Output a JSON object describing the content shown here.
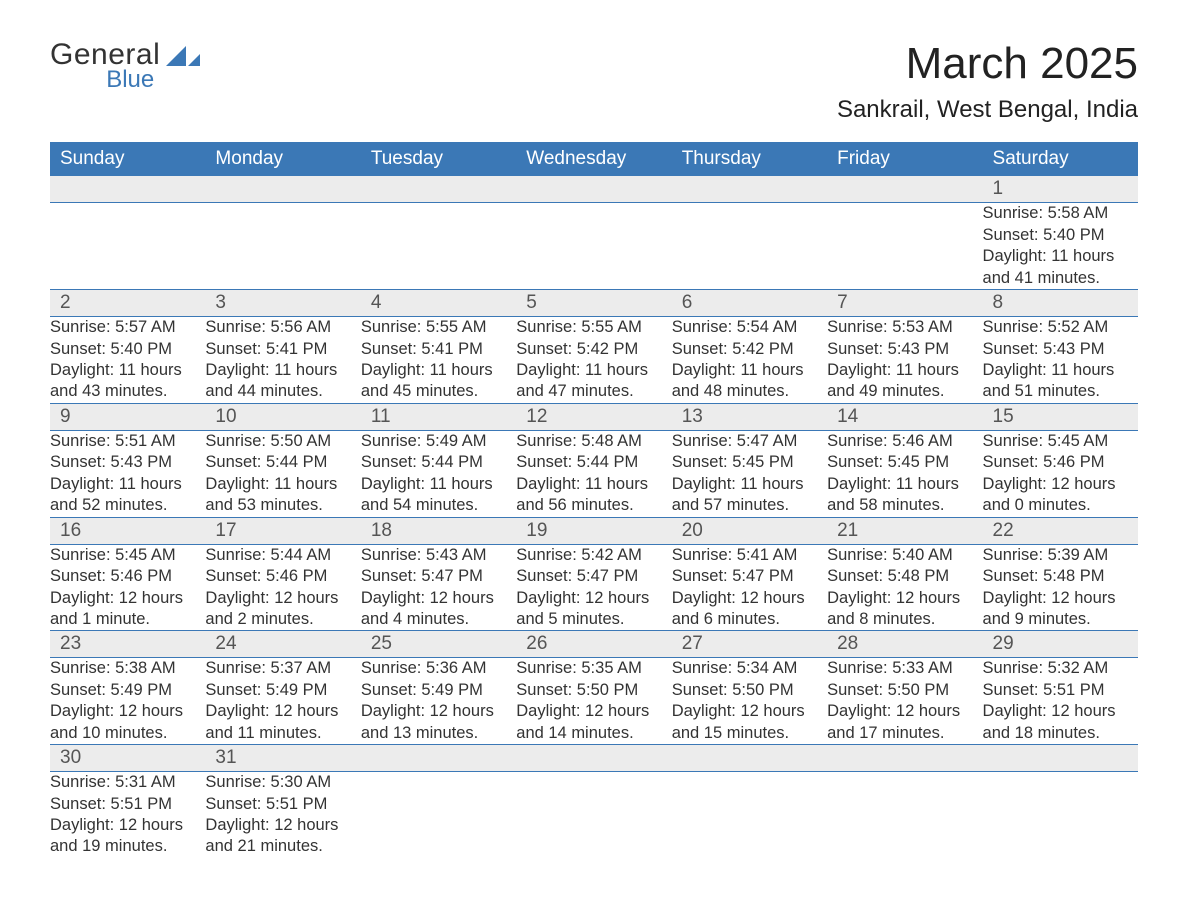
{
  "brand": {
    "line1": "General",
    "line2": "Blue",
    "icon_color": "#3b78b6"
  },
  "title": "March 2025",
  "location": "Sankrail, West Bengal, India",
  "columns": [
    "Sunday",
    "Monday",
    "Tuesday",
    "Wednesday",
    "Thursday",
    "Friday",
    "Saturday"
  ],
  "colors": {
    "header_bg": "#3b78b6",
    "header_text": "#ffffff",
    "daynum_bg": "#ececec",
    "row_divider": "#3b78b6",
    "body_text": "#333333",
    "page_bg": "#ffffff"
  },
  "typography": {
    "title_fontsize": 44,
    "location_fontsize": 24,
    "header_fontsize": 19,
    "daynum_fontsize": 19,
    "body_fontsize": 16.5,
    "font_family": "Arial"
  },
  "first_weekday_index": 6,
  "weeks": [
    [
      null,
      null,
      null,
      null,
      null,
      null,
      {
        "n": "1",
        "sunrise": "Sunrise: 5:58 AM",
        "sunset": "Sunset: 5:40 PM",
        "daylight": "Daylight: 11 hours and 41 minutes."
      }
    ],
    [
      {
        "n": "2",
        "sunrise": "Sunrise: 5:57 AM",
        "sunset": "Sunset: 5:40 PM",
        "daylight": "Daylight: 11 hours and 43 minutes."
      },
      {
        "n": "3",
        "sunrise": "Sunrise: 5:56 AM",
        "sunset": "Sunset: 5:41 PM",
        "daylight": "Daylight: 11 hours and 44 minutes."
      },
      {
        "n": "4",
        "sunrise": "Sunrise: 5:55 AM",
        "sunset": "Sunset: 5:41 PM",
        "daylight": "Daylight: 11 hours and 45 minutes."
      },
      {
        "n": "5",
        "sunrise": "Sunrise: 5:55 AM",
        "sunset": "Sunset: 5:42 PM",
        "daylight": "Daylight: 11 hours and 47 minutes."
      },
      {
        "n": "6",
        "sunrise": "Sunrise: 5:54 AM",
        "sunset": "Sunset: 5:42 PM",
        "daylight": "Daylight: 11 hours and 48 minutes."
      },
      {
        "n": "7",
        "sunrise": "Sunrise: 5:53 AM",
        "sunset": "Sunset: 5:43 PM",
        "daylight": "Daylight: 11 hours and 49 minutes."
      },
      {
        "n": "8",
        "sunrise": "Sunrise: 5:52 AM",
        "sunset": "Sunset: 5:43 PM",
        "daylight": "Daylight: 11 hours and 51 minutes."
      }
    ],
    [
      {
        "n": "9",
        "sunrise": "Sunrise: 5:51 AM",
        "sunset": "Sunset: 5:43 PM",
        "daylight": "Daylight: 11 hours and 52 minutes."
      },
      {
        "n": "10",
        "sunrise": "Sunrise: 5:50 AM",
        "sunset": "Sunset: 5:44 PM",
        "daylight": "Daylight: 11 hours and 53 minutes."
      },
      {
        "n": "11",
        "sunrise": "Sunrise: 5:49 AM",
        "sunset": "Sunset: 5:44 PM",
        "daylight": "Daylight: 11 hours and 54 minutes."
      },
      {
        "n": "12",
        "sunrise": "Sunrise: 5:48 AM",
        "sunset": "Sunset: 5:44 PM",
        "daylight": "Daylight: 11 hours and 56 minutes."
      },
      {
        "n": "13",
        "sunrise": "Sunrise: 5:47 AM",
        "sunset": "Sunset: 5:45 PM",
        "daylight": "Daylight: 11 hours and 57 minutes."
      },
      {
        "n": "14",
        "sunrise": "Sunrise: 5:46 AM",
        "sunset": "Sunset: 5:45 PM",
        "daylight": "Daylight: 11 hours and 58 minutes."
      },
      {
        "n": "15",
        "sunrise": "Sunrise: 5:45 AM",
        "sunset": "Sunset: 5:46 PM",
        "daylight": "Daylight: 12 hours and 0 minutes."
      }
    ],
    [
      {
        "n": "16",
        "sunrise": "Sunrise: 5:45 AM",
        "sunset": "Sunset: 5:46 PM",
        "daylight": "Daylight: 12 hours and 1 minute."
      },
      {
        "n": "17",
        "sunrise": "Sunrise: 5:44 AM",
        "sunset": "Sunset: 5:46 PM",
        "daylight": "Daylight: 12 hours and 2 minutes."
      },
      {
        "n": "18",
        "sunrise": "Sunrise: 5:43 AM",
        "sunset": "Sunset: 5:47 PM",
        "daylight": "Daylight: 12 hours and 4 minutes."
      },
      {
        "n": "19",
        "sunrise": "Sunrise: 5:42 AM",
        "sunset": "Sunset: 5:47 PM",
        "daylight": "Daylight: 12 hours and 5 minutes."
      },
      {
        "n": "20",
        "sunrise": "Sunrise: 5:41 AM",
        "sunset": "Sunset: 5:47 PM",
        "daylight": "Daylight: 12 hours and 6 minutes."
      },
      {
        "n": "21",
        "sunrise": "Sunrise: 5:40 AM",
        "sunset": "Sunset: 5:48 PM",
        "daylight": "Daylight: 12 hours and 8 minutes."
      },
      {
        "n": "22",
        "sunrise": "Sunrise: 5:39 AM",
        "sunset": "Sunset: 5:48 PM",
        "daylight": "Daylight: 12 hours and 9 minutes."
      }
    ],
    [
      {
        "n": "23",
        "sunrise": "Sunrise: 5:38 AM",
        "sunset": "Sunset: 5:49 PM",
        "daylight": "Daylight: 12 hours and 10 minutes."
      },
      {
        "n": "24",
        "sunrise": "Sunrise: 5:37 AM",
        "sunset": "Sunset: 5:49 PM",
        "daylight": "Daylight: 12 hours and 11 minutes."
      },
      {
        "n": "25",
        "sunrise": "Sunrise: 5:36 AM",
        "sunset": "Sunset: 5:49 PM",
        "daylight": "Daylight: 12 hours and 13 minutes."
      },
      {
        "n": "26",
        "sunrise": "Sunrise: 5:35 AM",
        "sunset": "Sunset: 5:50 PM",
        "daylight": "Daylight: 12 hours and 14 minutes."
      },
      {
        "n": "27",
        "sunrise": "Sunrise: 5:34 AM",
        "sunset": "Sunset: 5:50 PM",
        "daylight": "Daylight: 12 hours and 15 minutes."
      },
      {
        "n": "28",
        "sunrise": "Sunrise: 5:33 AM",
        "sunset": "Sunset: 5:50 PM",
        "daylight": "Daylight: 12 hours and 17 minutes."
      },
      {
        "n": "29",
        "sunrise": "Sunrise: 5:32 AM",
        "sunset": "Sunset: 5:51 PM",
        "daylight": "Daylight: 12 hours and 18 minutes."
      }
    ],
    [
      {
        "n": "30",
        "sunrise": "Sunrise: 5:31 AM",
        "sunset": "Sunset: 5:51 PM",
        "daylight": "Daylight: 12 hours and 19 minutes."
      },
      {
        "n": "31",
        "sunrise": "Sunrise: 5:30 AM",
        "sunset": "Sunset: 5:51 PM",
        "daylight": "Daylight: 12 hours and 21 minutes."
      },
      null,
      null,
      null,
      null,
      null
    ]
  ]
}
